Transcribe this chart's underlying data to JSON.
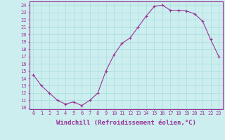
{
  "x": [
    0,
    1,
    2,
    3,
    4,
    5,
    6,
    7,
    8,
    9,
    10,
    11,
    12,
    13,
    14,
    15,
    16,
    17,
    18,
    19,
    20,
    21,
    22,
    23
  ],
  "y": [
    14.5,
    13.0,
    12.0,
    11.0,
    10.5,
    10.8,
    10.3,
    11.0,
    12.0,
    15.0,
    17.2,
    18.8,
    19.5,
    21.0,
    22.5,
    23.8,
    24.0,
    23.3,
    23.3,
    23.2,
    22.8,
    21.8,
    19.3,
    17.0
  ],
  "line_color": "#993399",
  "marker": "+",
  "background_color": "#cceeee",
  "grid_color": "#aadddd",
  "xlabel": "Windchill (Refroidissement éolien,°C)",
  "xlabel_color": "#993399",
  "ylabel_ticks": [
    10,
    11,
    12,
    13,
    14,
    15,
    16,
    17,
    18,
    19,
    20,
    21,
    22,
    23,
    24
  ],
  "xlim": [
    -0.5,
    23.5
  ],
  "ylim": [
    9.8,
    24.5
  ],
  "tick_color": "#993399",
  "axis_color": "#993399",
  "tick_fontsize": 5.0,
  "xlabel_fontsize": 6.5
}
